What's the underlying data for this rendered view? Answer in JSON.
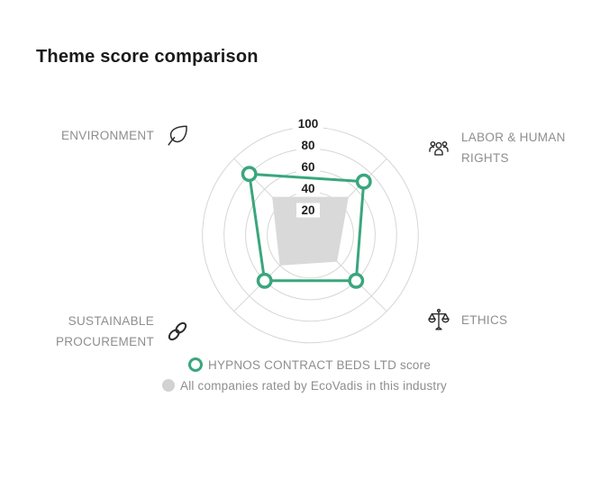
{
  "title": "Theme score comparison",
  "chart_data": {
    "type": "radar",
    "axes": [
      {
        "label": "ENVIRONMENT",
        "icon": "leaf-icon",
        "position": "top-left"
      },
      {
        "label": "LABOR & HUMAN RIGHTS",
        "icon": "people-group-icon",
        "position": "top-right"
      },
      {
        "label": "ETHICS",
        "icon": "scales-icon",
        "position": "bottom-right"
      },
      {
        "label": "SUSTAINABLE PROCUREMENT",
        "icon": "chain-link-icon",
        "position": "bottom-left"
      }
    ],
    "ticks": [
      20,
      40,
      60,
      80,
      100
    ],
    "max": 100,
    "grid": "circular",
    "legend_position": "bottom",
    "series": [
      {
        "name": "HYPNOS CONTRACT BEDS LTD score",
        "style": "line-with-ring-markers",
        "color": "#3aa67d",
        "values": [
          80,
          70,
          60,
          60
        ]
      },
      {
        "name": "All companies rated by EcoVadis in this industry",
        "style": "filled-area",
        "color": "#d9d9d9",
        "values": [
          50,
          50,
          35,
          40
        ]
      }
    ]
  },
  "colors": {
    "accent_green": "#3aa67d",
    "industry_fill": "#d9d9d9",
    "grid_line": "#d6d6d6",
    "tick_text": "#1f1f1f",
    "label_text": "#8e8e8e",
    "title_text": "#1a1a1a",
    "icon_stroke": "#2d2d2d"
  }
}
